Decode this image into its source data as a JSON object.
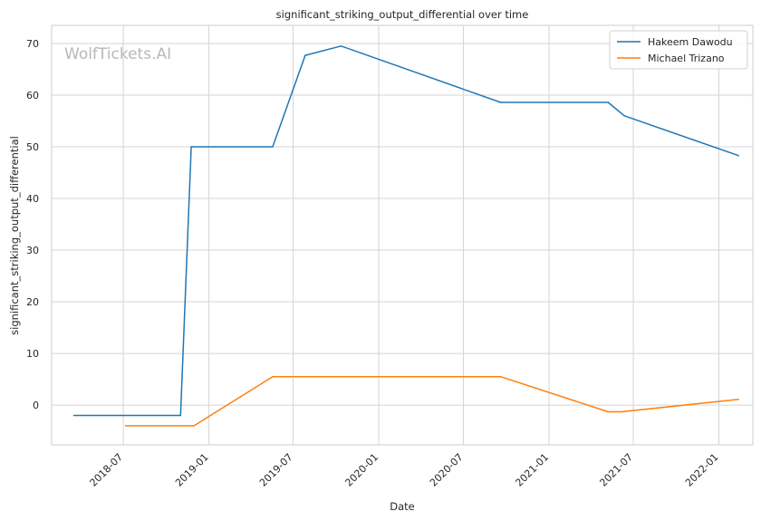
{
  "chart_data": {
    "type": "line",
    "title": "significant_striking_output_differential over time",
    "xlabel": "Date",
    "ylabel": "significant_striking_output_differential",
    "watermark": "WolfTickets.AI",
    "x_ticks": [
      "2018-07",
      "2019-01",
      "2019-07",
      "2020-01",
      "2020-07",
      "2021-01",
      "2021-07",
      "2022-01"
    ],
    "y_ticks": [
      0,
      10,
      20,
      30,
      40,
      50,
      60,
      70
    ],
    "xlim": [
      "2018-01-28",
      "2022-03-15"
    ],
    "ylim": [
      -7.7,
      73.5
    ],
    "grid": true,
    "legend_position": "top-right",
    "series": [
      {
        "name": "Hakeem Dawodu",
        "color": "#1f77b4",
        "points": [
          {
            "x": "2018-03-17",
            "y": -2.0
          },
          {
            "x": "2018-11-01",
            "y": -2.0
          },
          {
            "x": "2018-11-24",
            "y": 50.0
          },
          {
            "x": "2019-05-18",
            "y": 50.0
          },
          {
            "x": "2019-07-27",
            "y": 67.7
          },
          {
            "x": "2019-10-12",
            "y": 69.5
          },
          {
            "x": "2020-09-19",
            "y": 58.6
          },
          {
            "x": "2021-05-08",
            "y": 58.6
          },
          {
            "x": "2021-06-12",
            "y": 56.0
          },
          {
            "x": "2022-02-12",
            "y": 48.3
          }
        ]
      },
      {
        "name": "Michael Trizano",
        "color": "#ff7f0e",
        "points": [
          {
            "x": "2018-07-06",
            "y": -4.0
          },
          {
            "x": "2018-11-30",
            "y": -4.0
          },
          {
            "x": "2019-05-18",
            "y": 5.5
          },
          {
            "x": "2020-09-19",
            "y": 5.5
          },
          {
            "x": "2021-05-08",
            "y": -1.3
          },
          {
            "x": "2021-06-05",
            "y": -1.3
          },
          {
            "x": "2022-02-12",
            "y": 1.1
          }
        ]
      }
    ]
  }
}
